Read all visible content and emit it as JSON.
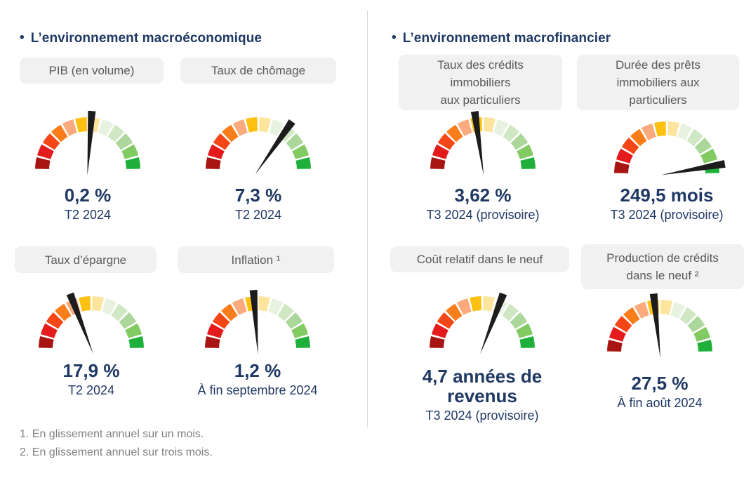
{
  "page": {
    "background": "#ffffff"
  },
  "sections": [
    {
      "id": "macroeconomique",
      "title": {
        "bullet": "•",
        "text": "L’environnement macroéconomique"
      }
    },
    {
      "id": "macrofinancier",
      "title": {
        "bullet": "•",
        "text": "L’environnement macrofinancier"
      }
    }
  ],
  "chart_data": [
    {
      "type": "gauge",
      "section": "L’environnement macroéconomique",
      "label_lines": [
        "PIB (en volume)"
      ],
      "value": 0.2,
      "unit": "%",
      "value_text": "0,2 %",
      "caption": "T2 2024",
      "needle_deg_from_vertical": 4,
      "scale_note": "semicircle, red (left/bad) to green (right/good), 12 segments"
    },
    {
      "type": "gauge",
      "section": "L’environnement macroéconomique",
      "label_lines": [
        "Taux de chômage"
      ],
      "value": 7.3,
      "unit": "%",
      "value_text": "7,3 %",
      "caption": "T2 2024",
      "needle_deg_from_vertical": 35,
      "scale_note": "semicircle, red (left) to green (right), 12 segments"
    },
    {
      "type": "gauge",
      "section": "L’environnement macrofinancier",
      "label_lines": [
        "Taux des crédits",
        "immobiliers",
        "aux particuliers"
      ],
      "value": 3.62,
      "unit": "%",
      "value_text": "3,62 %",
      "caption": "T3 2024 (provisoire)",
      "needle_deg_from_vertical": -8,
      "scale_note": "semicircle, red (left) to green (right), 12 segments"
    },
    {
      "type": "gauge",
      "section": "L’environnement macrofinancier",
      "label_lines": [
        "Durée des prêts",
        "immobiliers aux",
        "particuliers"
      ],
      "value": 249.5,
      "unit": "mois",
      "value_text": "249,5 mois",
      "caption": "T3 2024 (provisoire)",
      "needle_deg_from_vertical": 80,
      "scale_note": "semicircle, red (left) to green (right), 12 segments"
    },
    {
      "type": "gauge",
      "section": "L’environnement macroéconomique",
      "label_lines": [
        "Taux d’épargne"
      ],
      "value": 17.9,
      "unit": "%",
      "value_text": "17,9 %",
      "caption": "T2 2024",
      "needle_deg_from_vertical": -21,
      "scale_note": "semicircle, red (left) to green (right), 12 segments"
    },
    {
      "type": "gauge",
      "section": "L’environnement macroéconomique",
      "label_lines": [
        "Inflation ¹"
      ],
      "value": 1.2,
      "unit": "%",
      "value_text": "1,2 %",
      "caption": "À fin septembre 2024",
      "needle_deg_from_vertical": -4,
      "scale_note": "semicircle, red (left) to green (right), 12 segments"
    },
    {
      "type": "gauge",
      "section": "L’environnement macrofinancier",
      "label_lines": [
        "Coût relatif dans le neuf"
      ],
      "value": 4.7,
      "unit": "années de revenus",
      "value_text": "4,7 années de revenus",
      "caption": "T3 2024 (provisoire)",
      "needle_deg_from_vertical": 21,
      "scale_note": "semicircle, red (left) to green (right), 12 segments"
    },
    {
      "type": "gauge",
      "section": "L’environnement macrofinancier",
      "label_lines": [
        "Production de crédits",
        "dans le neuf ²"
      ],
      "value": 27.5,
      "unit": "%",
      "value_text": "27,5 %",
      "caption": "À fin août 2024",
      "needle_deg_from_vertical": -6,
      "scale_note": "semicircle, red (left) to green (right), 12 segments"
    }
  ],
  "gauge_style": {
    "segment_count": 12,
    "segment_colors": [
      "#a81411",
      "#e31b1c",
      "#f44616",
      "#fa7d1b",
      "#fbaa7d",
      "#fec011",
      "#fee59e",
      "#e7f2e0",
      "#d0e7c4",
      "#abd79a",
      "#82ca62",
      "#1fb03c"
    ],
    "needle_color": "#1c1c1c"
  },
  "footnotes": [
    "1. En glissement annuel sur un mois.",
    "2. En glissement annuel sur trois mois."
  ],
  "colors": {
    "title_navy": "#1f3864",
    "value_navy": "#1f3864",
    "pill_background": "#f1f1f1",
    "pill_text": "#595959",
    "footnote_gray": "#7f7f7f",
    "divider_gray": "#d9d9d9"
  }
}
